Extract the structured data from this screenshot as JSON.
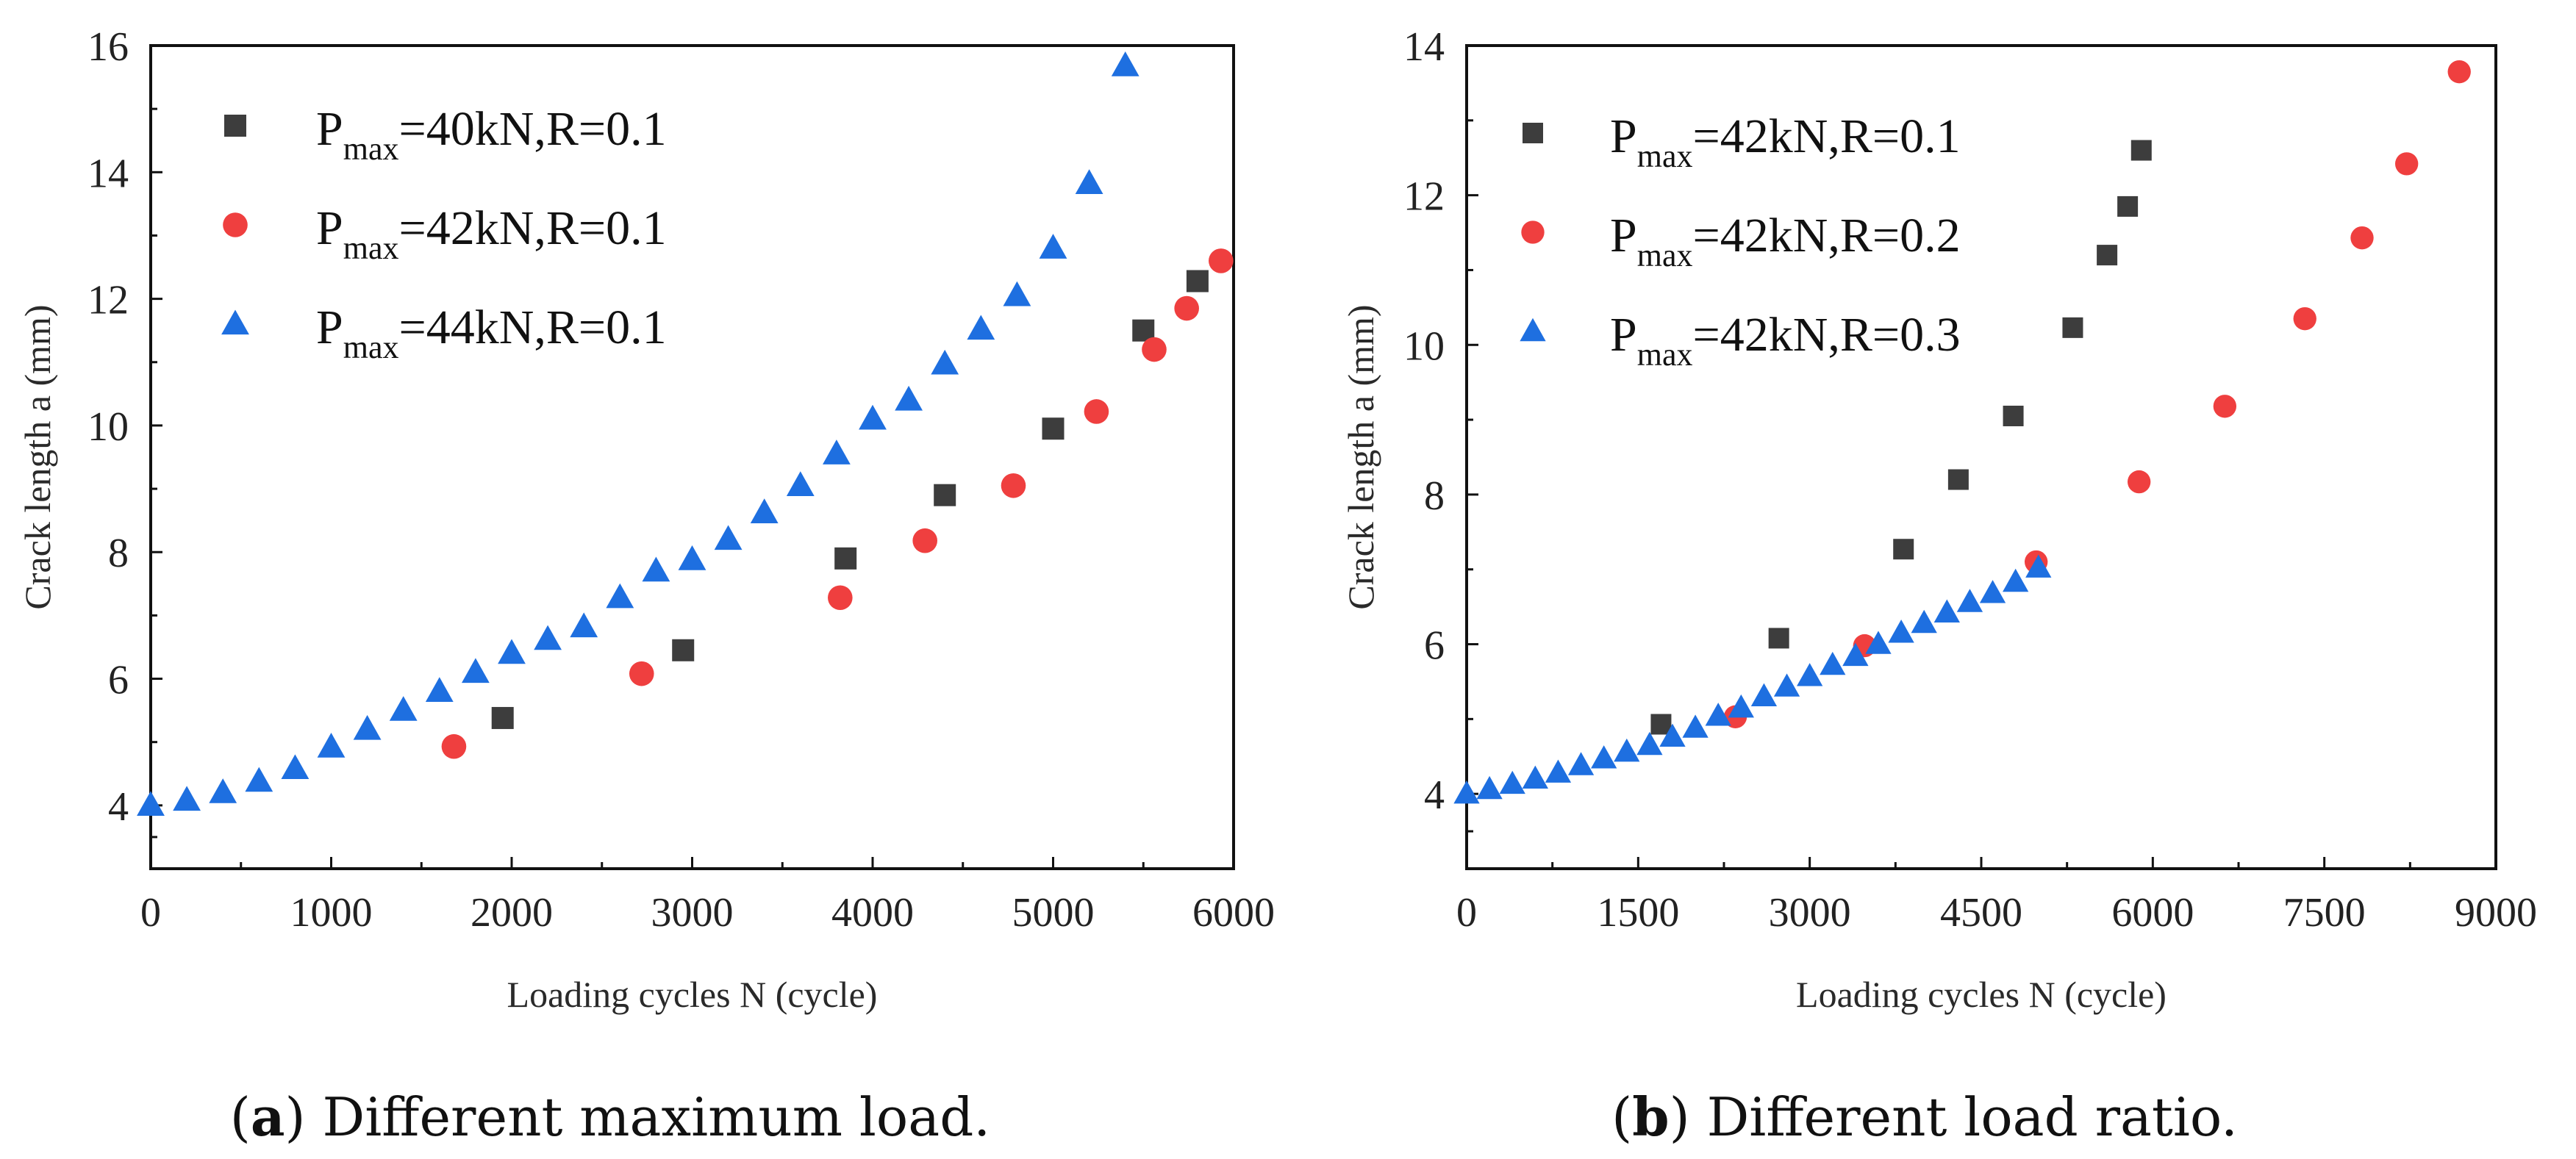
{
  "chart_data": [
    {
      "panel": "a",
      "type": "scatter",
      "caption_letter": "a",
      "caption_text": "Different maximum load.",
      "title": "",
      "xlabel": "Loading cycles N (cycle)",
      "ylabel": "Crack length a (mm)",
      "xlim": [
        0,
        6000
      ],
      "ylim": [
        3,
        16
      ],
      "xticks": [
        0,
        1000,
        2000,
        3000,
        4000,
        5000,
        6000
      ],
      "yticks": [
        4,
        6,
        8,
        10,
        12,
        14,
        16
      ],
      "legend_position": "top-left",
      "grid": false,
      "series": [
        {
          "name_main": "P",
          "name_sub": "max",
          "name_rest": "=40kN,R=0.1",
          "marker": "square",
          "color": "#3d3d3d",
          "x": [
            1950,
            2950,
            3850,
            4400,
            5000,
            5500,
            5800
          ],
          "y": [
            5.38,
            6.45,
            7.9,
            8.9,
            9.95,
            11.5,
            12.28
          ]
        },
        {
          "name_main": "P",
          "name_sub": "max",
          "name_rest": "=42kN,R=0.1",
          "marker": "circle",
          "color": "#ef3f3f",
          "x": [
            1680,
            2720,
            3820,
            4290,
            4780,
            5240,
            5560,
            5740,
            5930
          ],
          "y": [
            4.93,
            6.08,
            7.28,
            8.18,
            9.05,
            10.22,
            11.2,
            11.85,
            12.6
          ]
        },
        {
          "name_main": "P",
          "name_sub": "max",
          "name_rest": "=44kN,R=0.1",
          "marker": "triangle",
          "color": "#1e6fe0",
          "x": [
            0,
            200,
            400,
            600,
            800,
            1000,
            1200,
            1400,
            1600,
            1800,
            2000,
            2200,
            2400,
            2600,
            2800,
            3000,
            3200,
            3400,
            3600,
            3800,
            4000,
            4200,
            4400,
            4600,
            4800,
            5000,
            5200,
            5400
          ],
          "y": [
            4.0,
            4.08,
            4.2,
            4.38,
            4.58,
            4.92,
            5.2,
            5.5,
            5.8,
            6.1,
            6.4,
            6.62,
            6.82,
            7.28,
            7.7,
            7.88,
            8.2,
            8.62,
            9.05,
            9.55,
            10.1,
            10.4,
            10.97,
            11.52,
            12.05,
            12.8,
            13.82,
            15.68
          ]
        }
      ]
    },
    {
      "panel": "b",
      "type": "scatter",
      "caption_letter": "b",
      "caption_text": "Different load ratio.",
      "title": "",
      "xlabel": "Loading cycles N (cycle)",
      "ylabel": "Crack length a (mm)",
      "xlim": [
        0,
        9000
      ],
      "ylim": [
        3,
        14
      ],
      "xticks": [
        0,
        1500,
        3000,
        4500,
        6000,
        7500,
        9000
      ],
      "yticks": [
        4,
        6,
        8,
        10,
        12,
        14
      ],
      "legend_position": "top-left",
      "grid": false,
      "series": [
        {
          "name_main": "P",
          "name_sub": "max",
          "name_rest": "=42kN,R=0.1",
          "marker": "square",
          "color": "#3d3d3d",
          "x": [
            1700,
            2730,
            3820,
            4300,
            4780,
            5300,
            5600,
            5780,
            5900
          ],
          "y": [
            4.93,
            6.08,
            7.27,
            8.2,
            9.05,
            10.23,
            11.2,
            11.85,
            12.6
          ]
        },
        {
          "name_main": "P",
          "name_sub": "max",
          "name_rest": "=42kN,R=0.2",
          "marker": "circle",
          "color": "#ef3f3f",
          "x": [
            2350,
            3480,
            4980,
            5880,
            6630,
            7330,
            7830,
            8220,
            8680
          ],
          "y": [
            5.03,
            5.98,
            7.1,
            8.17,
            9.18,
            10.35,
            11.43,
            12.42,
            13.65
          ]
        },
        {
          "name_main": "P",
          "name_sub": "max",
          "name_rest": "=42kN,R=0.3",
          "marker": "triangle",
          "color": "#1e6fe0",
          "x": [
            0,
            200,
            400,
            600,
            800,
            1000,
            1200,
            1400,
            1600,
            1800,
            2000,
            2200,
            2400,
            2600,
            2800,
            3000,
            3200,
            3400,
            3600,
            3800,
            4000,
            4200,
            4400,
            4600,
            4800,
            5000
          ],
          "y": [
            4.0,
            4.06,
            4.13,
            4.2,
            4.28,
            4.38,
            4.47,
            4.56,
            4.65,
            4.76,
            4.88,
            5.04,
            5.15,
            5.3,
            5.43,
            5.57,
            5.72,
            5.84,
            6.0,
            6.15,
            6.28,
            6.42,
            6.56,
            6.68,
            6.83,
            7.02
          ]
        }
      ]
    }
  ]
}
